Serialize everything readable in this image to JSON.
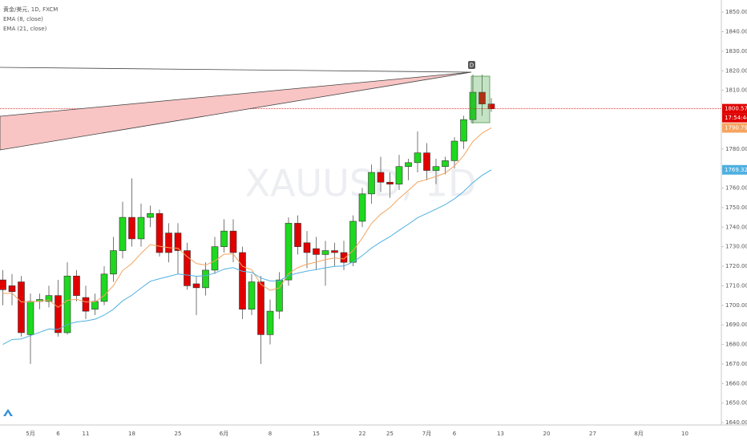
{
  "chart_data": {
    "type": "candlestick",
    "title": "黄金/美元, 1D, FXCM",
    "watermark": "XAUUSD, 1D",
    "annotation": "D",
    "countdown": "17:54:44",
    "categories": [
      null,
      null,
      null,
      "5月",
      null,
      null,
      "6",
      null,
      null,
      "11",
      null,
      null,
      null,
      null,
      "18",
      null,
      null,
      null,
      null,
      "25",
      null,
      null,
      null,
      null,
      "6月",
      null,
      null,
      null,
      null,
      "8",
      null,
      null,
      null,
      null,
      "15",
      null,
      null,
      null,
      null,
      "22",
      null,
      null,
      "25",
      null,
      null,
      null,
      "7月",
      null,
      null,
      "6",
      null,
      null,
      null,
      null,
      "13",
      null,
      null,
      null,
      null,
      "20",
      null,
      null,
      null,
      null,
      "27",
      null,
      null,
      null,
      null,
      "8月",
      null,
      null,
      null,
      null,
      "10"
    ],
    "series": [
      {
        "type": "candlestick",
        "up_color": "#1fd81f",
        "down_color": "#e00000",
        "open": [
          1713,
          1710,
          1712,
          1685,
          1702,
          1702,
          1705,
          1686,
          1715,
          1704,
          1698,
          1702,
          1716,
          1728,
          1745,
          1734,
          1745,
          1747,
          1737,
          1737,
          1728,
          1711,
          1709,
          1718,
          1730,
          1738,
          1727,
          1698,
          1712,
          1685,
          1697,
          1713,
          1742,
          1732,
          1729,
          1726,
          1728,
          1727,
          1722,
          1743,
          1757,
          1768,
          1763,
          1762,
          1771,
          1773,
          1778,
          1769,
          1771,
          1774,
          1784,
          1795,
          1809,
          1803,
          null,
          null,
          null,
          null,
          null,
          null,
          null,
          null,
          null,
          null,
          null,
          null,
          null,
          null,
          null,
          null,
          null,
          null,
          null,
          null,
          null
        ],
        "high": [
          1718,
          1716,
          1715,
          1706,
          1706,
          1710,
          1713,
          1722,
          1718,
          1710,
          1706,
          1720,
          1735,
          1753,
          1765,
          1752,
          1751,
          1749,
          1742,
          1742,
          1732,
          1715,
          1722,
          1735,
          1744,
          1744,
          1730,
          1716,
          1715,
          1703,
          1717,
          1745,
          1746,
          1738,
          1735,
          1733,
          1732,
          1733,
          1746,
          1760,
          1772,
          1776,
          1768,
          1777,
          1775,
          1789,
          1783,
          1775,
          1776,
          1786,
          1797,
          1818,
          1818,
          1806,
          null,
          null,
          null,
          null,
          null,
          null,
          null,
          null,
          null,
          null,
          null,
          null,
          null,
          null,
          null,
          null,
          null,
          null,
          null,
          null,
          null
        ],
        "low": [
          1700,
          1700,
          1684,
          1670,
          1698,
          1699,
          1684,
          1685,
          1702,
          1693,
          1695,
          1700,
          1712,
          1724,
          1730,
          1730,
          1740,
          1725,
          1722,
          1716,
          1708,
          1695,
          1705,
          1716,
          1727,
          1722,
          1693,
          1695,
          1670,
          1680,
          1693,
          1710,
          1726,
          1719,
          1718,
          1710,
          1720,
          1718,
          1720,
          1740,
          1752,
          1758,
          1755,
          1759,
          1764,
          1768,
          1764,
          1762,
          1767,
          1770,
          1780,
          1793,
          1797,
          1799,
          null,
          null,
          null,
          null,
          null,
          null,
          null,
          null,
          null,
          null,
          null,
          null,
          null,
          null,
          null,
          null,
          null,
          null,
          null,
          null,
          null
        ],
        "close": [
          1708,
          1707,
          1686,
          1702,
          1703,
          1705,
          1686,
          1715,
          1705,
          1697,
          1702,
          1716,
          1728,
          1745,
          1734,
          1745,
          1747,
          1727,
          1727,
          1728,
          1710,
          1709,
          1718,
          1730,
          1738,
          1727,
          1698,
          1712,
          1685,
          1697,
          1713,
          1742,
          1730,
          1727,
          1726,
          1728,
          1727,
          1722,
          1743,
          1757,
          1768,
          1763,
          1762,
          1771,
          1773,
          1778,
          1769,
          1771,
          1774,
          1784,
          1795,
          1809,
          1803,
          1800.57,
          null,
          null,
          null,
          null,
          null,
          null,
          null,
          null,
          null,
          null,
          null,
          null,
          null,
          null,
          null,
          null,
          null,
          null,
          null,
          null,
          null
        ]
      },
      {
        "type": "line",
        "name": "EMA (8, close)",
        "color": "#f4a460",
        "values": [
          1706,
          1706.2,
          1701.7,
          1701.8,
          1702.1,
          1702.7,
          1699,
          1702.6,
          1703.1,
          1701.7,
          1701.8,
          1705,
          1710.1,
          1717.8,
          1721.4,
          1726.6,
          1731.1,
          1730.2,
          1729.5,
          1729.2,
          1724.9,
          1721.4,
          1720.6,
          1722.7,
          1726.1,
          1726.3,
          1720,
          1718.2,
          1710.8,
          1707.7,
          1708.9,
          1716.2,
          1719.3,
          1721,
          1722.1,
          1723.4,
          1724.2,
          1723.7,
          1728,
          1734.4,
          1741.9,
          1746.6,
          1750,
          1754.7,
          1758.8,
          1763.1,
          1764.4,
          1765.9,
          1767.7,
          1771.3,
          1776.6,
          1783.8,
          1788.1,
          1790.79,
          null,
          null,
          null,
          null,
          null,
          null,
          null,
          null,
          null,
          null,
          null,
          null,
          null,
          null,
          null,
          null,
          null,
          null,
          null,
          null,
          null
        ]
      },
      {
        "type": "line",
        "name": "EMA (21, close)",
        "color": "#4fb0e0",
        "values": [
          1680,
          1682.5,
          1682.8,
          1684.5,
          1686.2,
          1687.9,
          1687.7,
          1690.2,
          1691.5,
          1692,
          1692.9,
          1695,
          1698,
          1702.3,
          1705.2,
          1708.8,
          1712.3,
          1713.6,
          1714.8,
          1716,
          1715.5,
          1714.9,
          1715.2,
          1716.5,
          1718.5,
          1719.3,
          1717.4,
          1716.9,
          1714,
          1712.5,
          1712.5,
          1715.2,
          1716.5,
          1717.5,
          1718.3,
          1719.2,
          1719.9,
          1720.1,
          1722.2,
          1725.4,
          1729.3,
          1732.4,
          1735.1,
          1738.4,
          1741.5,
          1744.8,
          1747,
          1749.2,
          1751.5,
          1754.5,
          1758.2,
          1762.8,
          1766.5,
          1769.32,
          null,
          null,
          null,
          null,
          null,
          null,
          null,
          null,
          null,
          null,
          null,
          null,
          null,
          null,
          null,
          null,
          null,
          null,
          null,
          null,
          null
        ]
      }
    ],
    "price_line_color": "#e00000",
    "ylim": [
      1638.8,
      1856.2
    ],
    "yticks": [
      {
        "value": 1640,
        "label": "1640.00"
      },
      {
        "value": 1650,
        "label": "1650.00"
      },
      {
        "value": 1660,
        "label": "1660.00"
      },
      {
        "value": 1670,
        "label": "1670.00"
      },
      {
        "value": 1680,
        "label": "1680.00"
      },
      {
        "value": 1690,
        "label": "1690.00"
      },
      {
        "value": 1700,
        "label": "1700.00"
      },
      {
        "value": 1710,
        "label": "1710.00"
      },
      {
        "value": 1720,
        "label": "1720.00"
      },
      {
        "value": 1730,
        "label": "1730.00"
      },
      {
        "value": 1740,
        "label": "1740.00"
      },
      {
        "value": 1750,
        "label": "1750.00"
      },
      {
        "value": 1760,
        "label": "1760.00"
      },
      {
        "value": 1770,
        "label": "1770.00"
      },
      {
        "value": 1780,
        "label": "1780.00"
      },
      {
        "value": 1810,
        "label": "1810.00"
      },
      {
        "value": 1820,
        "label": "1820.00"
      },
      {
        "value": 1830,
        "label": "1830.00"
      },
      {
        "value": 1840,
        "label": "1840.00"
      },
      {
        "value": 1850,
        "label": "1850.00"
      }
    ],
    "grid": false
  }
}
